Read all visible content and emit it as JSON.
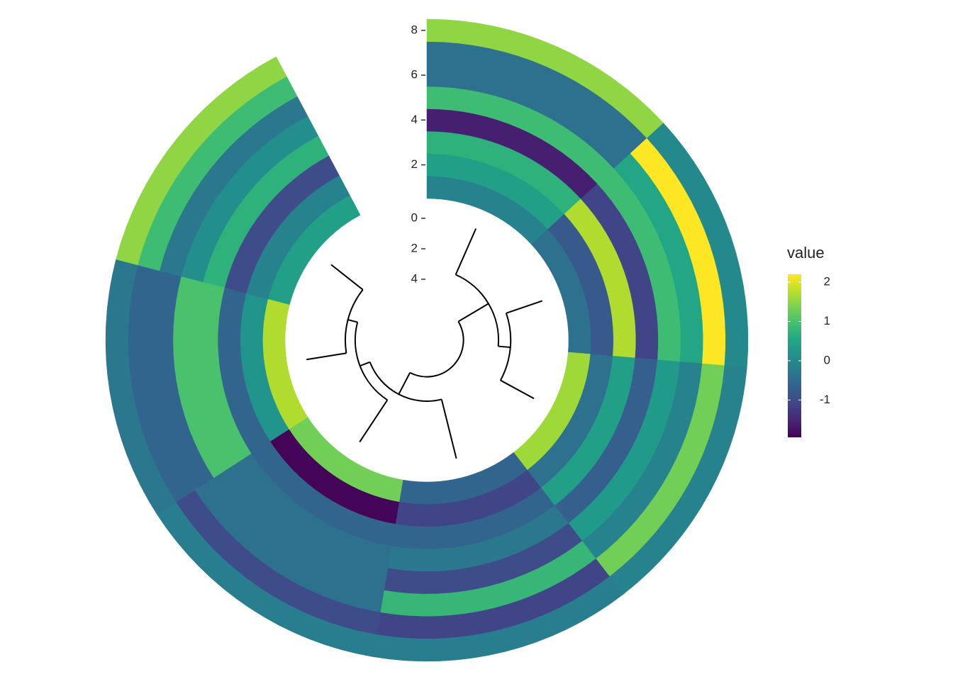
{
  "chart_data": {
    "type": "polar_heatmap",
    "xlim": [
      0.5,
      8.09
    ],
    "ylim": [
      0.5,
      8.5
    ],
    "yticks": [
      2,
      4,
      6,
      8
    ],
    "values": [
      [
        -0.1,
        -0.4,
        1.6,
        -0.6,
        1.3,
        1.7,
        0.4
      ],
      [
        0.4,
        -0.8,
        -0.4,
        -1.1,
        -1.9,
        0.2,
        -0.1
      ],
      [
        0.7,
        1.7,
        0.4,
        -0.6,
        -0.6,
        -0.6,
        -1.0
      ],
      [
        -1.6,
        -1.1,
        -0.7,
        -0.3,
        -0.4,
        1.0,
        0.7
      ],
      [
        0.9,
        0.9,
        0.3,
        -1.0,
        -0.4,
        1.0,
        0.1
      ],
      [
        -0.4,
        0.5,
        -0.1,
        0.8,
        -0.4,
        -0.6,
        -0.3
      ],
      [
        -0.4,
        2.2,
        1.3,
        -1.1,
        -1.0,
        -0.6,
        0.9
      ],
      [
        1.5,
        0.0,
        -0.1,
        -0.2,
        -0.2,
        -0.3,
        1.5
      ]
    ],
    "dendrogram": {
      "ylim": [
        0,
        8
      ],
      "yticks": [
        0,
        2,
        4
      ],
      "nodes": [
        {
          "children": [
            1,
            2
          ],
          "height": 2.5
        },
        {
          "children": [
            0,
            7
          ],
          "height": 3.3
        },
        {
          "children": [
            5,
            6
          ],
          "height": 2.65
        },
        {
          "children": [
            4,
            9
          ],
          "height": 3.3
        },
        {
          "children": [
            3,
            10
          ],
          "height": 4.0
        },
        {
          "children": [
            8,
            11
          ],
          "height": 5.6
        }
      ]
    },
    "legend": {
      "title": "value",
      "lim": [
        -1.95,
        2.2
      ],
      "ticks": [
        -1,
        0,
        1,
        2
      ]
    }
  }
}
